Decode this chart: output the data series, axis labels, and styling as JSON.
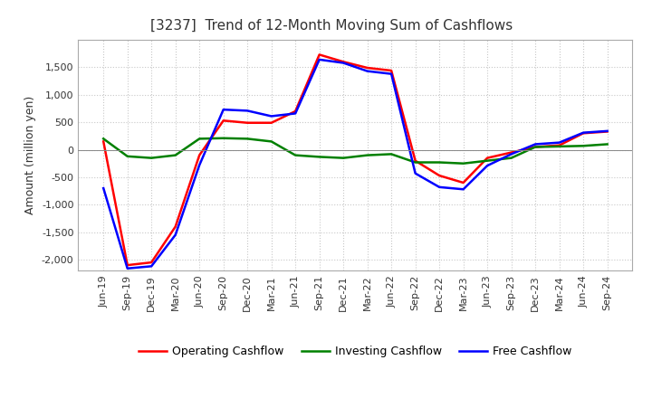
{
  "title": "[3237]  Trend of 12-Month Moving Sum of Cashflows",
  "ylabel": "Amount (million yen)",
  "x_labels": [
    "Jun-19",
    "Sep-19",
    "Dec-19",
    "Mar-20",
    "Jun-20",
    "Sep-20",
    "Dec-20",
    "Mar-21",
    "Jun-21",
    "Sep-21",
    "Dec-21",
    "Mar-22",
    "Jun-22",
    "Sep-22",
    "Dec-22",
    "Mar-23",
    "Jun-23",
    "Sep-23",
    "Dec-23",
    "Mar-24",
    "Jun-24",
    "Sep-24"
  ],
  "operating": [
    150,
    -2100,
    -2050,
    -1400,
    -100,
    530,
    490,
    490,
    700,
    1730,
    1600,
    1490,
    1440,
    -200,
    -470,
    -600,
    -150,
    -50,
    50,
    80,
    300,
    330
  ],
  "investing": [
    200,
    -120,
    -150,
    -100,
    200,
    210,
    200,
    150,
    -100,
    -130,
    -150,
    -100,
    -80,
    -230,
    -230,
    -250,
    -200,
    -150,
    50,
    60,
    70,
    100
  ],
  "free": [
    -700,
    -2160,
    -2120,
    -1550,
    -280,
    730,
    710,
    610,
    660,
    1640,
    1580,
    1430,
    1380,
    -430,
    -680,
    -720,
    -290,
    -80,
    100,
    130,
    310,
    340
  ],
  "operating_color": "#ff0000",
  "investing_color": "#008000",
  "free_color": "#0000ff",
  "ylim": [
    -2200,
    2000
  ],
  "yticks": [
    -2000,
    -1500,
    -1000,
    -500,
    0,
    500,
    1000,
    1500
  ],
  "background_color": "#ffffff",
  "grid_color": "#c8c8c8",
  "title_fontsize": 11,
  "ylabel_fontsize": 9,
  "tick_fontsize": 8
}
